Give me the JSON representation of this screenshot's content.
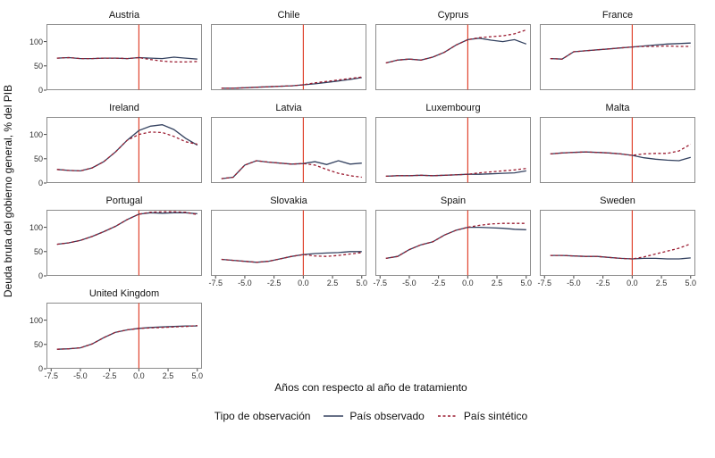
{
  "ylabel": "Deuda bruta del gobierno general, % del PIB",
  "xlabel": "Años con respecto al año de tratamiento",
  "legend": {
    "title": "Tipo de observación",
    "items": [
      {
        "label": "País observado",
        "style": "solid"
      },
      {
        "label": "País sintético",
        "style": "dashed"
      }
    ]
  },
  "colors": {
    "observed": "#33415f",
    "synthetic": "#9b1c31",
    "treatment_line": "#e0442e",
    "panel_border": "#8c8c8c",
    "tick_text": "#333333"
  },
  "chart_data": {
    "type": "line",
    "title": "",
    "xlabel": "Años con respecto al año de tratamiento",
    "ylabel": "Deuda bruta del gobierno general, % del PIB",
    "x": [
      -7,
      -6,
      -5,
      -4,
      -3,
      -2,
      -1,
      0,
      1,
      2,
      3,
      4,
      5
    ],
    "x_ticks": [
      -7.5,
      -5.0,
      -2.5,
      0.0,
      2.5,
      5.0
    ],
    "x_tick_labels": [
      "-7.5",
      "-5.0",
      "-2.5",
      "0.0",
      "2.5",
      "5.0"
    ],
    "y_ticks": [
      0,
      50,
      100
    ],
    "xlim": [
      -7.9,
      5.4
    ],
    "ylim": [
      0,
      136
    ],
    "treatment_x": 0,
    "grid": false,
    "legend_position": "bottom",
    "series_names": [
      "País observado",
      "País sintético"
    ],
    "panels": [
      {
        "title": "Austria",
        "observed": [
          66,
          67,
          65,
          65,
          66,
          66,
          65,
          67,
          66,
          65,
          68,
          66,
          64
        ],
        "synthetic": [
          66,
          67,
          65,
          65,
          66,
          66,
          65,
          67,
          63,
          60,
          58,
          58,
          59
        ]
      },
      {
        "title": "Chile",
        "observed": [
          4,
          4,
          5,
          6,
          7,
          8,
          9,
          11,
          13,
          16,
          19,
          22,
          26
        ],
        "synthetic": [
          4,
          4,
          5,
          6,
          7,
          8,
          9,
          11,
          15,
          18,
          21,
          24,
          27
        ]
      },
      {
        "title": "Cyprus",
        "observed": [
          56,
          62,
          64,
          62,
          68,
          78,
          93,
          104,
          107,
          103,
          100,
          104,
          95
        ],
        "synthetic": [
          56,
          62,
          64,
          62,
          68,
          78,
          93,
          104,
          108,
          110,
          112,
          116,
          124
        ]
      },
      {
        "title": "France",
        "observed": [
          65,
          64,
          79,
          81,
          83,
          85,
          87,
          89,
          91,
          93,
          95,
          96,
          97
        ],
        "synthetic": [
          65,
          64,
          79,
          81,
          83,
          85,
          87,
          89,
          90,
          90,
          91,
          90,
          90
        ]
      },
      {
        "title": "Ireland",
        "observed": [
          28,
          26,
          25,
          31,
          44,
          64,
          88,
          108,
          117,
          120,
          110,
          92,
          78
        ],
        "synthetic": [
          28,
          26,
          25,
          31,
          44,
          64,
          88,
          100,
          105,
          104,
          96,
          85,
          80
        ]
      },
      {
        "title": "Latvia",
        "observed": [
          9,
          12,
          37,
          46,
          43,
          41,
          39,
          40,
          44,
          38,
          46,
          39,
          41
        ],
        "synthetic": [
          9,
          12,
          37,
          46,
          43,
          41,
          39,
          40,
          37,
          28,
          20,
          15,
          12
        ]
      },
      {
        "title": "Luxembourg",
        "observed": [
          14,
          15,
          15,
          16,
          15,
          16,
          17,
          18,
          18,
          19,
          20,
          21,
          25
        ],
        "synthetic": [
          14,
          15,
          15,
          16,
          15,
          16,
          17,
          18,
          21,
          23,
          25,
          27,
          30
        ]
      },
      {
        "title": "Malta",
        "observed": [
          60,
          62,
          63,
          64,
          63,
          62,
          60,
          57,
          52,
          49,
          47,
          46,
          53
        ],
        "synthetic": [
          60,
          62,
          63,
          64,
          63,
          62,
          60,
          57,
          60,
          61,
          61,
          66,
          80
        ]
      },
      {
        "title": "Portugal",
        "observed": [
          65,
          68,
          73,
          81,
          91,
          102,
          116,
          127,
          130,
          129,
          130,
          130,
          128
        ],
        "synthetic": [
          65,
          68,
          73,
          81,
          91,
          102,
          116,
          127,
          131,
          132,
          132,
          131,
          126
        ]
      },
      {
        "title": "Slovakia",
        "observed": [
          34,
          32,
          30,
          28,
          30,
          35,
          40,
          44,
          46,
          47,
          48,
          50,
          50
        ],
        "synthetic": [
          34,
          32,
          30,
          28,
          30,
          35,
          40,
          44,
          41,
          40,
          42,
          45,
          48
        ]
      },
      {
        "title": "Spain",
        "observed": [
          36,
          40,
          54,
          64,
          70,
          84,
          94,
          100,
          100,
          99,
          98,
          96,
          95
        ],
        "synthetic": [
          36,
          40,
          54,
          64,
          70,
          84,
          94,
          100,
          104,
          107,
          108,
          108,
          108
        ]
      },
      {
        "title": "Sweden",
        "observed": [
          42,
          42,
          41,
          40,
          40,
          38,
          36,
          35,
          36,
          36,
          35,
          35,
          37
        ],
        "synthetic": [
          42,
          42,
          41,
          40,
          40,
          38,
          36,
          35,
          39,
          45,
          51,
          57,
          66
        ]
      },
      {
        "title": "United Kingdom",
        "observed": [
          40,
          41,
          43,
          51,
          64,
          75,
          80,
          83,
          85,
          86,
          87,
          88,
          88
        ],
        "synthetic": [
          40,
          41,
          43,
          51,
          64,
          75,
          80,
          83,
          84,
          85,
          86,
          87,
          89
        ]
      }
    ]
  }
}
